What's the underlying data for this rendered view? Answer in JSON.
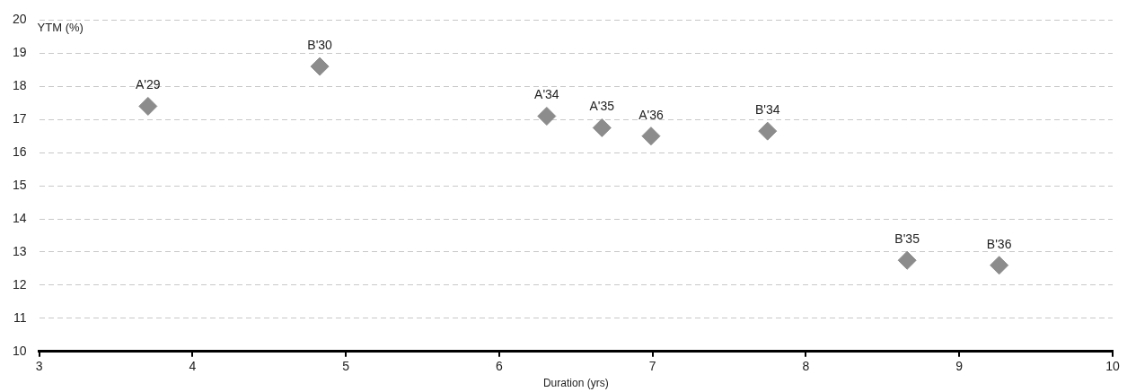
{
  "chart_data": {
    "type": "scatter",
    "xlabel": "Duration (yrs)",
    "ylabel": "YTM (%)",
    "x": [
      3.71,
      4.83,
      6.31,
      6.67,
      6.99,
      7.75,
      8.66,
      9.26
    ],
    "values": [
      17.4,
      18.6,
      17.1,
      16.75,
      16.5,
      16.65,
      12.75,
      12.6
    ],
    "color": "#8c8c8c",
    "marker": "diamond",
    "xlim": [
      3,
      10
    ],
    "xticks": [
      3,
      4,
      5,
      6,
      7,
      8,
      9,
      10
    ],
    "ylim": [
      10,
      20
    ],
    "yticks": [
      10,
      11,
      12,
      13,
      14,
      15,
      16,
      17,
      18,
      19,
      20
    ],
    "grid": "y",
    "legend": false,
    "annotations": [
      {
        "text": "A'29",
        "x": 3.71,
        "y": 17.4
      },
      {
        "text": "B'30",
        "x": 4.83,
        "y": 18.6
      },
      {
        "text": "A'34",
        "x": 6.31,
        "y": 17.1
      },
      {
        "text": "A'35",
        "x": 6.67,
        "y": 16.75
      },
      {
        "text": "A'36",
        "x": 6.99,
        "y": 16.5
      },
      {
        "text": "B'34",
        "x": 7.75,
        "y": 16.65
      },
      {
        "text": "B'35",
        "x": 8.66,
        "y": 12.75
      },
      {
        "text": "B'36",
        "x": 9.26,
        "y": 12.6
      }
    ]
  }
}
